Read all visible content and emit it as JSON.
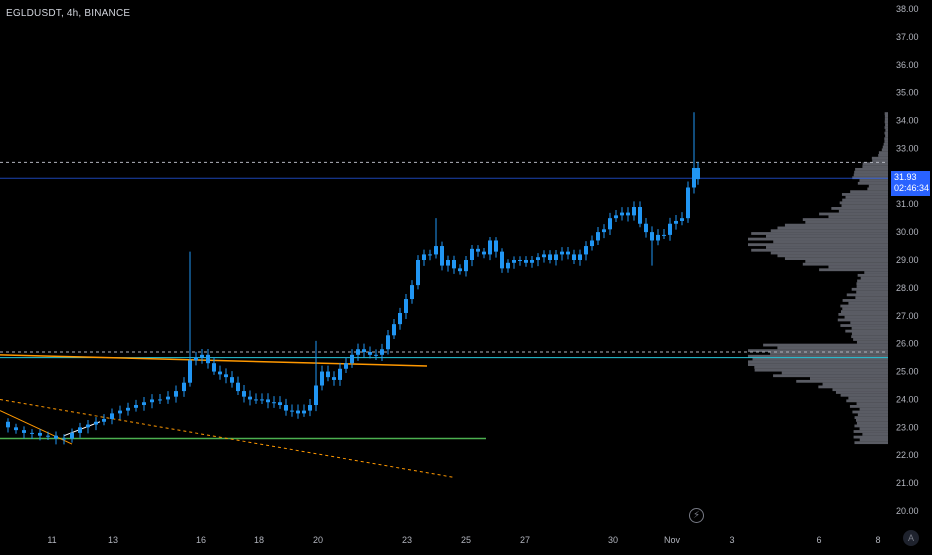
{
  "header": {
    "symbol": "EGLDUSDT, 4h, BINANCE"
  },
  "price_badge": {
    "price": "31.93",
    "countdown": "02:46:34"
  },
  "icons": {
    "lightning": "lightning-icon",
    "scale_mode": "A"
  },
  "colors": {
    "background": "#000000",
    "candle": "#2196f3",
    "badge": "#2962ff",
    "support_line": "#4caf50",
    "trend_line": "#ff9800",
    "level_line": "#26c6da",
    "volume_profile": "#787b86"
  },
  "chart_data": {
    "type": "candlestick",
    "title": "EGLDUSDT, 4h, BINANCE",
    "ylim": [
      19.6,
      38.3
    ],
    "y_ticks": [
      "38.00",
      "37.00",
      "36.00",
      "35.00",
      "34.00",
      "33.00",
      "32.00",
      "31.00",
      "30.00",
      "29.00",
      "28.00",
      "27.00",
      "26.00",
      "25.00",
      "24.00",
      "23.00",
      "22.00",
      "21.00",
      "20.00"
    ],
    "x_ticks": [
      "11",
      "13",
      "16",
      "18",
      "20",
      "23",
      "25",
      "27",
      "30",
      "Nov",
      "3",
      "6",
      "8"
    ],
    "current_price": 31.93,
    "key_prices": {
      "horizontal_dashed_high": 32.5,
      "horizontal_dashed_low": 25.7,
      "level_line": 25.5,
      "support_line": 22.6
    },
    "price_path": [
      [
        0,
        23.2
      ],
      [
        8,
        23.0
      ],
      [
        16,
        22.9
      ],
      [
        24,
        22.8
      ],
      [
        32,
        22.8
      ],
      [
        40,
        22.7
      ],
      [
        48,
        22.7
      ],
      [
        56,
        22.6
      ],
      [
        64,
        22.6
      ],
      [
        72,
        22.8
      ],
      [
        80,
        23.0
      ],
      [
        88,
        23.1
      ],
      [
        96,
        23.2
      ],
      [
        104,
        23.3
      ],
      [
        112,
        23.5
      ],
      [
        120,
        23.6
      ],
      [
        128,
        23.7
      ],
      [
        136,
        23.8
      ],
      [
        144,
        23.9
      ],
      [
        152,
        24.0
      ],
      [
        160,
        24.0
      ],
      [
        168,
        24.1
      ],
      [
        176,
        24.3
      ],
      [
        184,
        24.6
      ],
      [
        190,
        25.4
      ],
      [
        196,
        25.5
      ],
      [
        202,
        25.6
      ],
      [
        208,
        25.3
      ],
      [
        214,
        25.0
      ],
      [
        220,
        24.9
      ],
      [
        226,
        24.8
      ],
      [
        232,
        24.6
      ],
      [
        238,
        24.3
      ],
      [
        244,
        24.1
      ],
      [
        250,
        24.0
      ],
      [
        256,
        24.0
      ],
      [
        262,
        24.0
      ],
      [
        268,
        23.9
      ],
      [
        274,
        23.9
      ],
      [
        280,
        23.8
      ],
      [
        286,
        23.6
      ],
      [
        292,
        23.6
      ],
      [
        298,
        23.5
      ],
      [
        304,
        23.6
      ],
      [
        310,
        23.8
      ],
      [
        316,
        24.5
      ],
      [
        322,
        25.0
      ],
      [
        328,
        24.8
      ],
      [
        334,
        24.7
      ],
      [
        340,
        25.1
      ],
      [
        346,
        25.3
      ],
      [
        352,
        25.6
      ],
      [
        358,
        25.8
      ],
      [
        364,
        25.7
      ],
      [
        370,
        25.6
      ],
      [
        376,
        25.6
      ],
      [
        382,
        25.8
      ],
      [
        388,
        26.3
      ],
      [
        394,
        26.7
      ],
      [
        400,
        27.1
      ],
      [
        406,
        27.6
      ],
      [
        412,
        28.1
      ],
      [
        418,
        29.0
      ],
      [
        424,
        29.2
      ],
      [
        430,
        29.2
      ],
      [
        436,
        29.5
      ],
      [
        442,
        28.8
      ],
      [
        448,
        29.0
      ],
      [
        454,
        28.7
      ],
      [
        460,
        28.6
      ],
      [
        466,
        29.0
      ],
      [
        472,
        29.4
      ],
      [
        478,
        29.3
      ],
      [
        484,
        29.2
      ],
      [
        490,
        29.7
      ],
      [
        496,
        29.3
      ],
      [
        502,
        28.7
      ],
      [
        508,
        28.9
      ],
      [
        514,
        29.0
      ],
      [
        520,
        29.0
      ],
      [
        526,
        28.9
      ],
      [
        532,
        29.0
      ],
      [
        538,
        29.1
      ],
      [
        544,
        29.2
      ],
      [
        550,
        29.0
      ],
      [
        556,
        29.2
      ],
      [
        562,
        29.3
      ],
      [
        568,
        29.2
      ],
      [
        574,
        29.0
      ],
      [
        580,
        29.2
      ],
      [
        586,
        29.5
      ],
      [
        592,
        29.7
      ],
      [
        598,
        30.0
      ],
      [
        604,
        30.1
      ],
      [
        610,
        30.5
      ],
      [
        616,
        30.6
      ],
      [
        622,
        30.7
      ],
      [
        628,
        30.6
      ],
      [
        634,
        30.9
      ],
      [
        640,
        30.3
      ],
      [
        646,
        30.0
      ],
      [
        652,
        29.7
      ],
      [
        658,
        29.9
      ],
      [
        664,
        29.9
      ],
      [
        670,
        30.3
      ],
      [
        676,
        30.4
      ],
      [
        682,
        30.5
      ],
      [
        688,
        31.6
      ],
      [
        694,
        32.3
      ],
      [
        698,
        31.9
      ]
    ],
    "grid": false,
    "legend": "none"
  }
}
